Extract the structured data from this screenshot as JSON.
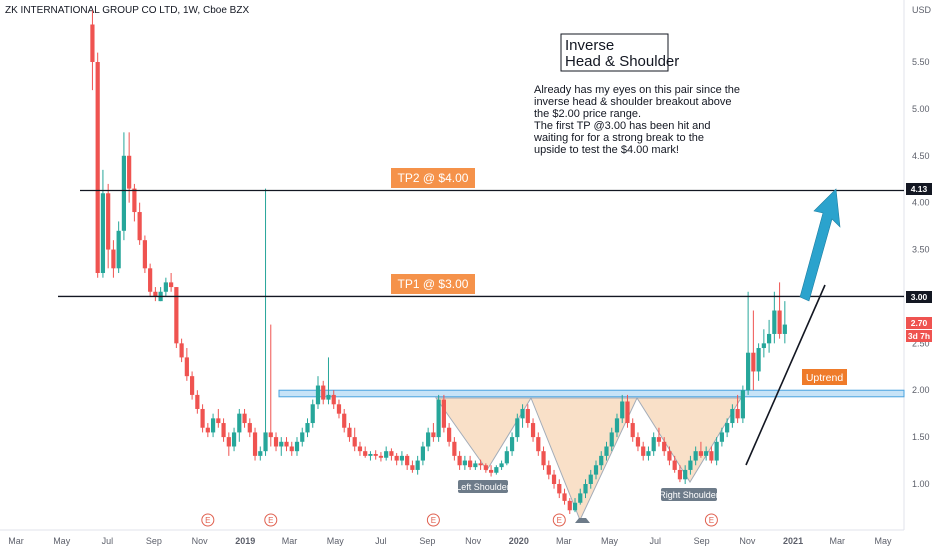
{
  "header": {
    "title": "ZK INTERNATIONAL GROUP CO LTD, 1W, Cboe BZX",
    "currency": "USD"
  },
  "chart_data": {
    "type": "candlestick",
    "title": "ZK INTERNATIONAL GROUP CO LTD, 1W, Cboe BZX",
    "y_ticks": [
      "5.50",
      "5.00",
      "4.50",
      "4.00",
      "3.50",
      "3.00",
      "2.50",
      "2.00",
      "1.50",
      "1.00"
    ],
    "x_ticks": [
      "Mar",
      "May",
      "Jul",
      "Sep",
      "Nov",
      "2019",
      "Mar",
      "May",
      "Jul",
      "Sep",
      "Nov",
      "2020",
      "Mar",
      "May",
      "Jul",
      "Sep",
      "Nov",
      "2021",
      "Mar",
      "May"
    ],
    "ylim": [
      0.65,
      6.05
    ],
    "grid": false,
    "up_color": "#26a69a",
    "down_color": "#ef5350",
    "candles": [
      {
        "x": "2018-06-11",
        "o": 5.9,
        "h": 6.05,
        "l": 5.2,
        "c": 5.5
      },
      {
        "x": "2018-06-18",
        "o": 5.5,
        "h": 5.6,
        "l": 3.2,
        "c": 3.25
      },
      {
        "x": "2018-06-25",
        "o": 3.25,
        "h": 4.35,
        "l": 3.2,
        "c": 4.1
      },
      {
        "x": "2018-07-02",
        "o": 4.1,
        "h": 4.2,
        "l": 3.3,
        "c": 3.5
      },
      {
        "x": "2018-07-09",
        "o": 3.5,
        "h": 3.6,
        "l": 3.2,
        "c": 3.3
      },
      {
        "x": "2018-07-16",
        "o": 3.3,
        "h": 3.8,
        "l": 3.25,
        "c": 3.7
      },
      {
        "x": "2018-07-23",
        "o": 3.7,
        "h": 4.75,
        "l": 3.6,
        "c": 4.5
      },
      {
        "x": "2018-07-30",
        "o": 4.5,
        "h": 4.75,
        "l": 4.0,
        "c": 4.15
      },
      {
        "x": "2018-08-06",
        "o": 4.15,
        "h": 4.2,
        "l": 3.8,
        "c": 3.9
      },
      {
        "x": "2018-08-13",
        "o": 3.9,
        "h": 4.0,
        "l": 3.55,
        "c": 3.6
      },
      {
        "x": "2018-08-20",
        "o": 3.6,
        "h": 3.65,
        "l": 3.25,
        "c": 3.3
      },
      {
        "x": "2018-08-27",
        "o": 3.3,
        "h": 3.35,
        "l": 3.0,
        "c": 3.05
      },
      {
        "x": "2018-09-03",
        "o": 3.05,
        "h": 3.1,
        "l": 2.95,
        "c": 3.0
      },
      {
        "x": "2018-09-10",
        "o": 2.95,
        "h": 3.1,
        "l": 2.95,
        "c": 3.05
      },
      {
        "x": "2018-09-17",
        "o": 3.05,
        "h": 3.2,
        "l": 3.0,
        "c": 3.15
      },
      {
        "x": "2018-09-24",
        "o": 3.15,
        "h": 3.25,
        "l": 3.05,
        "c": 3.1
      },
      {
        "x": "2018-10-01",
        "o": 3.1,
        "h": 3.1,
        "l": 2.45,
        "c": 2.5
      },
      {
        "x": "2018-10-08",
        "o": 2.5,
        "h": 2.55,
        "l": 2.3,
        "c": 2.35
      },
      {
        "x": "2018-10-15",
        "o": 2.35,
        "h": 2.45,
        "l": 2.1,
        "c": 2.15
      },
      {
        "x": "2018-10-22",
        "o": 2.15,
        "h": 2.2,
        "l": 1.9,
        "c": 1.95
      },
      {
        "x": "2018-10-29",
        "o": 1.95,
        "h": 2.0,
        "l": 1.75,
        "c": 1.8
      },
      {
        "x": "2018-11-05",
        "o": 1.8,
        "h": 1.85,
        "l": 1.55,
        "c": 1.6
      },
      {
        "x": "2018-11-12",
        "o": 1.6,
        "h": 1.65,
        "l": 1.5,
        "c": 1.55
      },
      {
        "x": "2018-11-19",
        "o": 1.55,
        "h": 1.75,
        "l": 1.5,
        "c": 1.7
      },
      {
        "x": "2018-11-26",
        "o": 1.7,
        "h": 1.8,
        "l": 1.6,
        "c": 1.65
      },
      {
        "x": "2018-12-03",
        "o": 1.65,
        "h": 1.7,
        "l": 1.45,
        "c": 1.5
      },
      {
        "x": "2018-12-10",
        "o": 1.5,
        "h": 1.55,
        "l": 1.3,
        "c": 1.4
      },
      {
        "x": "2018-12-17",
        "o": 1.4,
        "h": 1.6,
        "l": 1.35,
        "c": 1.55
      },
      {
        "x": "2018-12-24",
        "o": 1.55,
        "h": 1.8,
        "l": 1.45,
        "c": 1.75
      },
      {
        "x": "2018-12-31",
        "o": 1.75,
        "h": 1.8,
        "l": 1.6,
        "c": 1.65
      },
      {
        "x": "2019-01-07",
        "o": 1.65,
        "h": 1.7,
        "l": 1.5,
        "c": 1.55
      },
      {
        "x": "2019-01-14",
        "o": 1.55,
        "h": 1.6,
        "l": 1.25,
        "c": 1.3
      },
      {
        "x": "2019-01-21",
        "o": 1.3,
        "h": 1.4,
        "l": 1.25,
        "c": 1.35
      },
      {
        "x": "2019-01-28",
        "o": 1.35,
        "h": 4.15,
        "l": 1.3,
        "c": 1.55
      },
      {
        "x": "2019-02-04",
        "o": 1.55,
        "h": 2.7,
        "l": 1.4,
        "c": 1.5
      },
      {
        "x": "2019-02-11",
        "o": 1.5,
        "h": 1.55,
        "l": 1.35,
        "c": 1.4
      },
      {
        "x": "2019-02-18",
        "o": 1.4,
        "h": 1.5,
        "l": 1.3,
        "c": 1.45
      },
      {
        "x": "2019-02-25",
        "o": 1.45,
        "h": 1.5,
        "l": 1.35,
        "c": 1.4
      },
      {
        "x": "2019-03-04",
        "o": 1.4,
        "h": 1.45,
        "l": 1.3,
        "c": 1.35
      },
      {
        "x": "2019-03-11",
        "o": 1.35,
        "h": 1.5,
        "l": 1.3,
        "c": 1.45
      },
      {
        "x": "2019-03-18",
        "o": 1.45,
        "h": 1.6,
        "l": 1.4,
        "c": 1.55
      },
      {
        "x": "2019-03-25",
        "o": 1.55,
        "h": 1.7,
        "l": 1.5,
        "c": 1.65
      },
      {
        "x": "2019-04-01",
        "o": 1.65,
        "h": 1.9,
        "l": 1.6,
        "c": 1.85
      },
      {
        "x": "2019-04-08",
        "o": 1.85,
        "h": 2.15,
        "l": 1.8,
        "c": 2.05
      },
      {
        "x": "2019-04-15",
        "o": 2.05,
        "h": 2.1,
        "l": 1.85,
        "c": 1.9
      },
      {
        "x": "2019-04-22",
        "o": 1.9,
        "h": 2.35,
        "l": 1.85,
        "c": 1.95
      },
      {
        "x": "2019-04-29",
        "o": 1.95,
        "h": 2.0,
        "l": 1.8,
        "c": 1.85
      },
      {
        "x": "2019-05-06",
        "o": 1.85,
        "h": 1.9,
        "l": 1.7,
        "c": 1.75
      },
      {
        "x": "2019-05-13",
        "o": 1.75,
        "h": 1.8,
        "l": 1.55,
        "c": 1.6
      },
      {
        "x": "2019-05-20",
        "o": 1.6,
        "h": 1.65,
        "l": 1.45,
        "c": 1.5
      },
      {
        "x": "2019-05-27",
        "o": 1.5,
        "h": 1.6,
        "l": 1.35,
        "c": 1.4
      },
      {
        "x": "2019-06-03",
        "o": 1.4,
        "h": 1.45,
        "l": 1.3,
        "c": 1.35
      },
      {
        "x": "2019-06-10",
        "o": 1.35,
        "h": 1.4,
        "l": 1.28,
        "c": 1.3
      },
      {
        "x": "2019-06-17",
        "o": 1.3,
        "h": 1.35,
        "l": 1.25,
        "c": 1.32
      },
      {
        "x": "2019-06-24",
        "o": 1.32,
        "h": 1.36,
        "l": 1.26,
        "c": 1.3
      },
      {
        "x": "2019-07-01",
        "o": 1.3,
        "h": 1.34,
        "l": 1.24,
        "c": 1.28
      },
      {
        "x": "2019-07-08",
        "o": 1.28,
        "h": 1.4,
        "l": 1.25,
        "c": 1.35
      },
      {
        "x": "2019-07-15",
        "o": 1.35,
        "h": 1.38,
        "l": 1.25,
        "c": 1.3
      },
      {
        "x": "2019-07-22",
        "o": 1.3,
        "h": 1.33,
        "l": 1.2,
        "c": 1.25
      },
      {
        "x": "2019-07-29",
        "o": 1.25,
        "h": 1.35,
        "l": 1.2,
        "c": 1.3
      },
      {
        "x": "2019-08-05",
        "o": 1.3,
        "h": 1.32,
        "l": 1.15,
        "c": 1.2
      },
      {
        "x": "2019-08-12",
        "o": 1.2,
        "h": 1.25,
        "l": 1.12,
        "c": 1.15
      },
      {
        "x": "2019-08-19",
        "o": 1.15,
        "h": 1.3,
        "l": 1.1,
        "c": 1.25
      },
      {
        "x": "2019-08-26",
        "o": 1.25,
        "h": 1.45,
        "l": 1.2,
        "c": 1.4
      },
      {
        "x": "2019-09-02",
        "o": 1.4,
        "h": 1.6,
        "l": 1.35,
        "c": 1.55
      },
      {
        "x": "2019-09-09",
        "o": 1.55,
        "h": 1.65,
        "l": 1.45,
        "c": 1.5
      },
      {
        "x": "2019-09-16",
        "o": 1.5,
        "h": 1.95,
        "l": 1.45,
        "c": 1.9
      },
      {
        "x": "2019-09-23",
        "o": 1.9,
        "h": 1.95,
        "l": 1.55,
        "c": 1.6
      },
      {
        "x": "2019-09-30",
        "o": 1.6,
        "h": 1.65,
        "l": 1.4,
        "c": 1.45
      },
      {
        "x": "2019-10-07",
        "o": 1.45,
        "h": 1.5,
        "l": 1.25,
        "c": 1.3
      },
      {
        "x": "2019-10-14",
        "o": 1.3,
        "h": 1.35,
        "l": 1.15,
        "c": 1.2
      },
      {
        "x": "2019-10-21",
        "o": 1.2,
        "h": 1.3,
        "l": 1.15,
        "c": 1.25
      },
      {
        "x": "2019-10-28",
        "o": 1.25,
        "h": 1.3,
        "l": 1.15,
        "c": 1.18
      },
      {
        "x": "2019-11-04",
        "o": 1.18,
        "h": 1.25,
        "l": 1.15,
        "c": 1.22
      },
      {
        "x": "2019-11-11",
        "o": 1.22,
        "h": 1.26,
        "l": 1.15,
        "c": 1.2
      },
      {
        "x": "2019-11-18",
        "o": 1.2,
        "h": 1.22,
        "l": 1.12,
        "c": 1.15
      },
      {
        "x": "2019-11-25",
        "o": 1.15,
        "h": 1.2,
        "l": 1.08,
        "c": 1.12
      },
      {
        "x": "2019-12-02",
        "o": 1.12,
        "h": 1.2,
        "l": 1.1,
        "c": 1.18
      },
      {
        "x": "2019-12-09",
        "o": 1.18,
        "h": 1.25,
        "l": 1.15,
        "c": 1.22
      },
      {
        "x": "2019-12-16",
        "o": 1.22,
        "h": 1.4,
        "l": 1.2,
        "c": 1.35
      },
      {
        "x": "2019-12-23",
        "o": 1.35,
        "h": 1.55,
        "l": 1.3,
        "c": 1.5
      },
      {
        "x": "2019-12-30",
        "o": 1.5,
        "h": 1.75,
        "l": 1.45,
        "c": 1.7
      },
      {
        "x": "2020-01-06",
        "o": 1.7,
        "h": 1.85,
        "l": 1.6,
        "c": 1.8
      },
      {
        "x": "2020-01-13",
        "o": 1.8,
        "h": 1.85,
        "l": 1.6,
        "c": 1.65
      },
      {
        "x": "2020-01-20",
        "o": 1.65,
        "h": 1.7,
        "l": 1.45,
        "c": 1.5
      },
      {
        "x": "2020-01-27",
        "o": 1.5,
        "h": 1.55,
        "l": 1.3,
        "c": 1.35
      },
      {
        "x": "2020-02-03",
        "o": 1.35,
        "h": 1.4,
        "l": 1.15,
        "c": 1.2
      },
      {
        "x": "2020-02-10",
        "o": 1.2,
        "h": 1.25,
        "l": 1.05,
        "c": 1.1
      },
      {
        "x": "2020-02-17",
        "o": 1.1,
        "h": 1.15,
        "l": 0.95,
        "c": 1.0
      },
      {
        "x": "2020-02-24",
        "o": 1.0,
        "h": 1.05,
        "l": 0.85,
        "c": 0.9
      },
      {
        "x": "2020-03-02",
        "o": 0.9,
        "h": 0.95,
        "l": 0.78,
        "c": 0.82
      },
      {
        "x": "2020-03-09",
        "o": 0.82,
        "h": 0.85,
        "l": 0.68,
        "c": 0.72
      },
      {
        "x": "2020-03-16",
        "o": 0.72,
        "h": 0.85,
        "l": 0.7,
        "c": 0.8
      },
      {
        "x": "2020-03-23",
        "o": 0.8,
        "h": 0.95,
        "l": 0.78,
        "c": 0.9
      },
      {
        "x": "2020-03-30",
        "o": 0.9,
        "h": 1.05,
        "l": 0.85,
        "c": 1.0
      },
      {
        "x": "2020-04-06",
        "o": 1.0,
        "h": 1.15,
        "l": 0.95,
        "c": 1.1
      },
      {
        "x": "2020-04-13",
        "o": 1.1,
        "h": 1.25,
        "l": 1.05,
        "c": 1.2
      },
      {
        "x": "2020-04-20",
        "o": 1.2,
        "h": 1.35,
        "l": 1.15,
        "c": 1.3
      },
      {
        "x": "2020-04-27",
        "o": 1.3,
        "h": 1.45,
        "l": 1.25,
        "c": 1.4
      },
      {
        "x": "2020-05-04",
        "o": 1.4,
        "h": 1.6,
        "l": 1.35,
        "c": 1.55
      },
      {
        "x": "2020-05-11",
        "o": 1.55,
        "h": 1.75,
        "l": 1.5,
        "c": 1.7
      },
      {
        "x": "2020-05-18",
        "o": 1.7,
        "h": 1.95,
        "l": 1.65,
        "c": 1.88
      },
      {
        "x": "2020-05-25",
        "o": 1.88,
        "h": 1.95,
        "l": 1.6,
        "c": 1.65
      },
      {
        "x": "2020-06-01",
        "o": 1.65,
        "h": 1.7,
        "l": 1.45,
        "c": 1.5
      },
      {
        "x": "2020-06-08",
        "o": 1.5,
        "h": 1.55,
        "l": 1.35,
        "c": 1.4
      },
      {
        "x": "2020-06-15",
        "o": 1.4,
        "h": 1.45,
        "l": 1.25,
        "c": 1.3
      },
      {
        "x": "2020-06-22",
        "o": 1.3,
        "h": 1.4,
        "l": 1.25,
        "c": 1.35
      },
      {
        "x": "2020-06-29",
        "o": 1.35,
        "h": 1.55,
        "l": 1.3,
        "c": 1.5
      },
      {
        "x": "2020-07-06",
        "o": 1.5,
        "h": 1.6,
        "l": 1.4,
        "c": 1.45
      },
      {
        "x": "2020-07-13",
        "o": 1.45,
        "h": 1.5,
        "l": 1.3,
        "c": 1.35
      },
      {
        "x": "2020-07-20",
        "o": 1.35,
        "h": 1.4,
        "l": 1.2,
        "c": 1.25
      },
      {
        "x": "2020-07-27",
        "o": 1.25,
        "h": 1.3,
        "l": 1.12,
        "c": 1.15
      },
      {
        "x": "2020-08-03",
        "o": 1.15,
        "h": 1.2,
        "l": 1.02,
        "c": 1.05
      },
      {
        "x": "2020-08-10",
        "o": 1.05,
        "h": 1.2,
        "l": 1.0,
        "c": 1.15
      },
      {
        "x": "2020-08-17",
        "o": 1.15,
        "h": 1.3,
        "l": 1.1,
        "c": 1.25
      },
      {
        "x": "2020-08-24",
        "o": 1.25,
        "h": 1.4,
        "l": 1.2,
        "c": 1.35
      },
      {
        "x": "2020-08-31",
        "o": 1.35,
        "h": 1.45,
        "l": 1.28,
        "c": 1.3
      },
      {
        "x": "2020-09-07",
        "o": 1.3,
        "h": 1.4,
        "l": 1.25,
        "c": 1.35
      },
      {
        "x": "2020-09-14",
        "o": 1.35,
        "h": 1.4,
        "l": 1.22,
        "c": 1.25
      },
      {
        "x": "2020-09-21",
        "o": 1.25,
        "h": 1.5,
        "l": 1.2,
        "c": 1.45
      },
      {
        "x": "2020-09-28",
        "o": 1.45,
        "h": 1.6,
        "l": 1.4,
        "c": 1.55
      },
      {
        "x": "2020-10-05",
        "o": 1.55,
        "h": 1.7,
        "l": 1.5,
        "c": 1.65
      },
      {
        "x": "2020-10-12",
        "o": 1.65,
        "h": 1.85,
        "l": 1.6,
        "c": 1.8
      },
      {
        "x": "2020-10-19",
        "o": 1.8,
        "h": 1.95,
        "l": 1.65,
        "c": 1.7
      },
      {
        "x": "2020-10-26",
        "o": 1.7,
        "h": 2.05,
        "l": 1.65,
        "c": 2.0
      },
      {
        "x": "2020-11-02",
        "o": 2.0,
        "h": 3.05,
        "l": 1.95,
        "c": 2.4
      },
      {
        "x": "2020-11-09",
        "o": 2.4,
        "h": 2.85,
        "l": 2.0,
        "c": 2.2
      },
      {
        "x": "2020-11-16",
        "o": 2.2,
        "h": 2.5,
        "l": 2.1,
        "c": 2.45
      },
      {
        "x": "2020-11-23",
        "o": 2.45,
        "h": 2.65,
        "l": 2.35,
        "c": 2.5
      },
      {
        "x": "2020-11-30",
        "o": 2.5,
        "h": 2.75,
        "l": 2.4,
        "c": 2.6
      },
      {
        "x": "2020-12-07",
        "o": 2.6,
        "h": 3.05,
        "l": 2.5,
        "c": 2.85
      },
      {
        "x": "2020-12-14",
        "o": 2.85,
        "h": 3.15,
        "l": 2.55,
        "c": 2.6
      },
      {
        "x": "2020-12-21",
        "o": 2.6,
        "h": 2.95,
        "l": 2.5,
        "c": 2.7
      }
    ],
    "current_price": "2.70",
    "current_volume": "3d 7h",
    "horizontal_lines": [
      {
        "value": 4.13,
        "label": "4.13"
      },
      {
        "value": 3.0,
        "label": "3.00"
      }
    ],
    "neckline_zone": [
      1.93,
      2.0
    ],
    "annotations": {
      "box_title_line1": "Inverse",
      "box_title_line2": "Head & Shoulder",
      "note_lines": [
        "Already has my eyes on this pair since the",
        "inverse head & shoulder breakout above",
        "the $2.00 price range.",
        "The first TP @3.00 has been hit and",
        "waiting for for a strong break to the",
        "upside to test the $4.00 mark!"
      ],
      "tp2": "TP2 @ $4.00",
      "tp1": "TP1 @ $3.00",
      "uptrend": "Uptrend",
      "left_shoulder": "Left Shoulder",
      "right_shoulder": "Right Shoulder",
      "earnings_marker": "E"
    },
    "earnings_dates": [
      "2018-11-12",
      "2019-02-04",
      "2019-09-09",
      "2020-02-24",
      "2020-09-14"
    ],
    "colors": {
      "line": "#131722",
      "zone_fill": "#c7e3f7",
      "zone_stroke": "#4aa3df",
      "triangle_fill": "#f9ddc3",
      "triangle_stroke": "#9aa4b1",
      "tp_fill": "#f5924a",
      "uptrend_fill": "#ef7b2a",
      "arrow": "#2ba3cd",
      "shoulder_tag": "#6d7b89",
      "price_tag_red": "#ef5350",
      "price_tag_dark": "#131722"
    }
  }
}
